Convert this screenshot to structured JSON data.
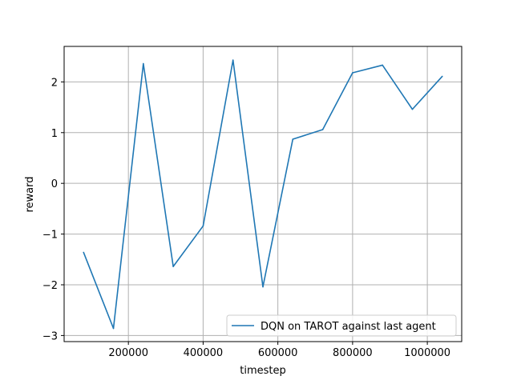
{
  "chart_data": {
    "type": "line",
    "title": "",
    "xlabel": "timestep",
    "ylabel": "reward",
    "xlim": [
      28000,
      1092000
    ],
    "ylim": [
      -3.12,
      2.7
    ],
    "grid": true,
    "legend_placement": "lower-right",
    "xticks": [
      200000,
      400000,
      600000,
      800000,
      1000000
    ],
    "xtick_labels": [
      "200000",
      "400000",
      "600000",
      "800000",
      "1000000"
    ],
    "yticks": [
      -3,
      -2,
      -1,
      0,
      1,
      2
    ],
    "ytick_labels": [
      "−3",
      "−2",
      "−1",
      "0",
      "1",
      "2"
    ],
    "series": [
      {
        "name": "DQN on TAROT against last agent",
        "color": "#1f77b4",
        "x": [
          80000,
          160000,
          240000,
          320000,
          400000,
          480000,
          560000,
          640000,
          720000,
          800000,
          880000,
          960000,
          1040000
        ],
        "y": [
          -1.36,
          -2.86,
          2.36,
          -1.64,
          -0.84,
          2.43,
          -2.04,
          0.87,
          1.06,
          2.18,
          2.33,
          1.46,
          2.11
        ]
      }
    ]
  }
}
